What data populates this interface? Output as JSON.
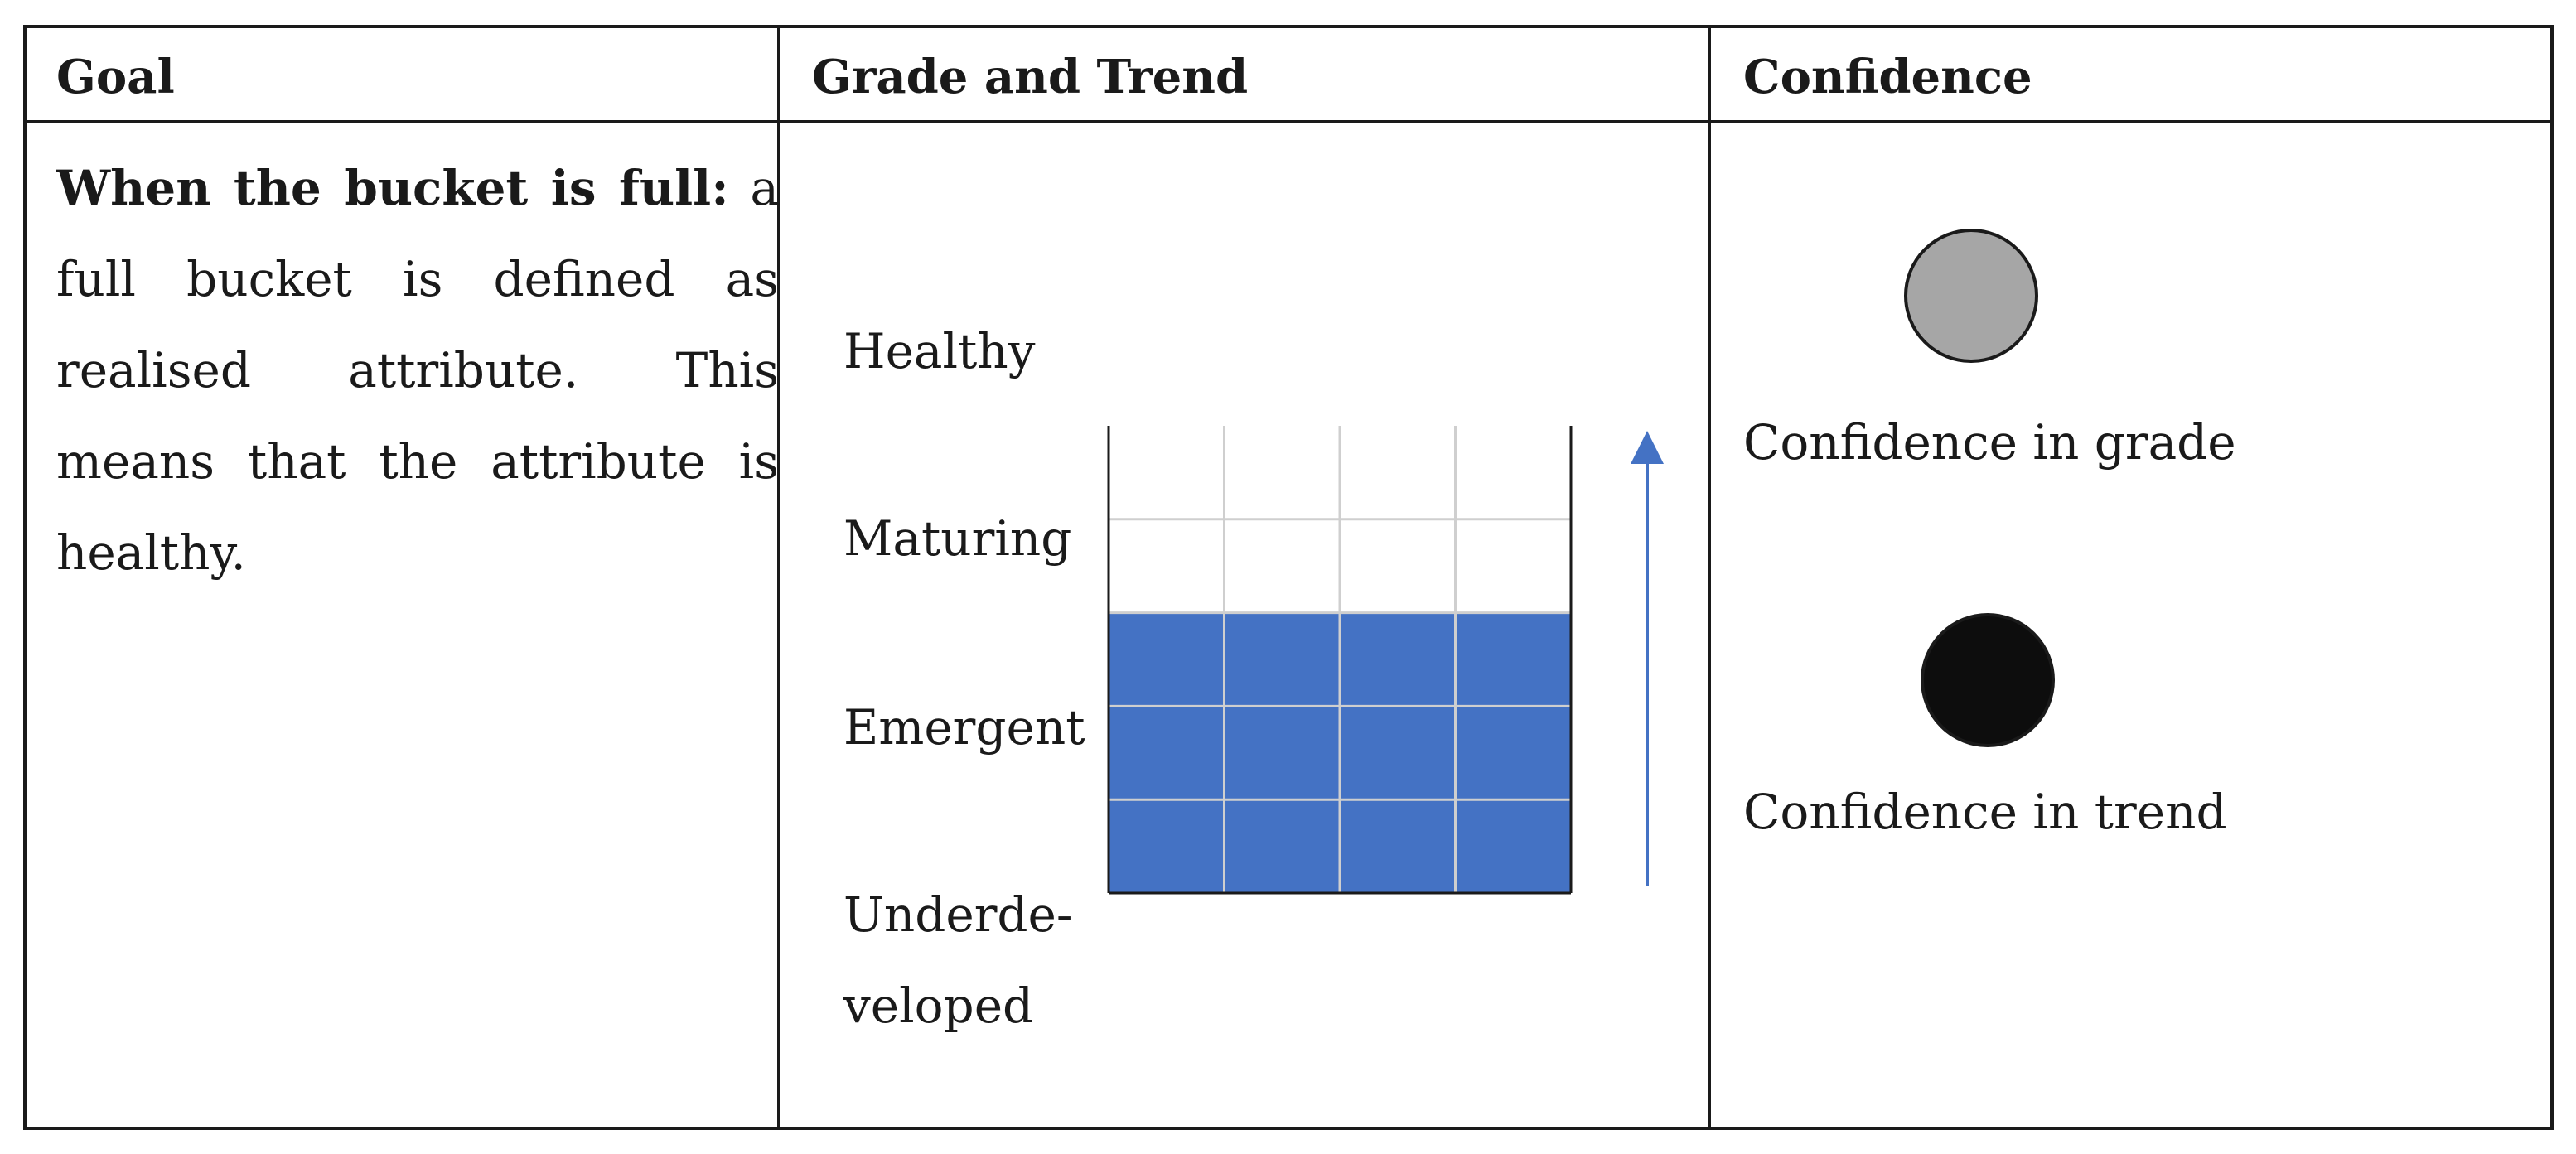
{
  "table": {
    "headers": {
      "goal": "Goal",
      "grade_and_trend": "Grade and Trend",
      "confidence": "Confidence"
    },
    "goal": {
      "lead": "When the bucket is full:",
      "body": "a full bucket is defined as realised attribute. This means that the attribute is healthy."
    },
    "grade": {
      "levels": [
        "Healthy",
        "Maturing",
        "Emergent",
        "Underdeveloped"
      ],
      "level_1": "Healthy",
      "level_2": "Maturing",
      "level_3": "Emergent",
      "level_4_line1": "Underde-",
      "level_4_line2": "veloped",
      "filled_levels": 3,
      "total_levels": 5,
      "grid_columns": 4,
      "fill_color": "#4472c4",
      "trend": "up",
      "trend_color": "#4472c4"
    },
    "confidence": {
      "grade_label": "Confidence in grade",
      "grade_color": "#a6a6a6",
      "trend_label": "Confidence in trend",
      "trend_color": "#0d0d0d"
    }
  }
}
